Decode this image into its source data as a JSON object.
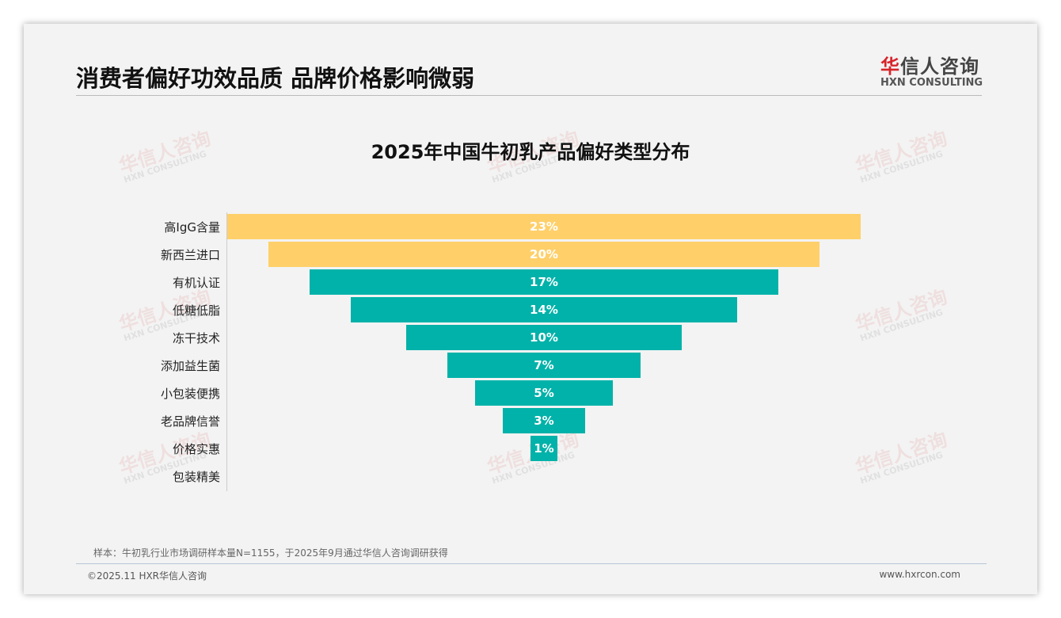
{
  "header": {
    "title": "消费者偏好功效品质 品牌价格影响微弱"
  },
  "logo": {
    "cn_red": "华",
    "cn_rest": "信人咨询",
    "en": "HXN CONSULTING"
  },
  "watermark": {
    "cn": "华信人咨询",
    "en": "HXN CONSULTING"
  },
  "chart_data": {
    "type": "bar",
    "orientation": "horizontal-funnel",
    "title": "2025年中国牛初乳产品偏好类型分布",
    "categories": [
      "高IgG含量",
      "新西兰进口",
      "有机认证",
      "低糖低脂",
      "冻干技术",
      "添加益生菌",
      "小包装便携",
      "老品牌信誉",
      "价格实惠",
      "包装精美"
    ],
    "values": [
      23,
      20,
      17,
      14,
      10,
      7,
      5,
      3,
      1,
      0
    ],
    "labels": [
      "23%",
      "20%",
      "17%",
      "14%",
      "10%",
      "7%",
      "5%",
      "3%",
      "1%",
      ""
    ],
    "colors": [
      "#ffd06a",
      "#ffd06a",
      "#00b2a9",
      "#00b2a9",
      "#00b2a9",
      "#00b2a9",
      "#00b2a9",
      "#00b2a9",
      "#00b2a9",
      "#00b2a9"
    ],
    "unit": "%"
  },
  "footer": {
    "note": "样本：牛初乳行业市场调研样本量N=1155，于2025年9月通过华信人咨询调研获得",
    "copyright": "©2025.11 HXR华信人咨询",
    "url": "www.hxrcon.com"
  }
}
